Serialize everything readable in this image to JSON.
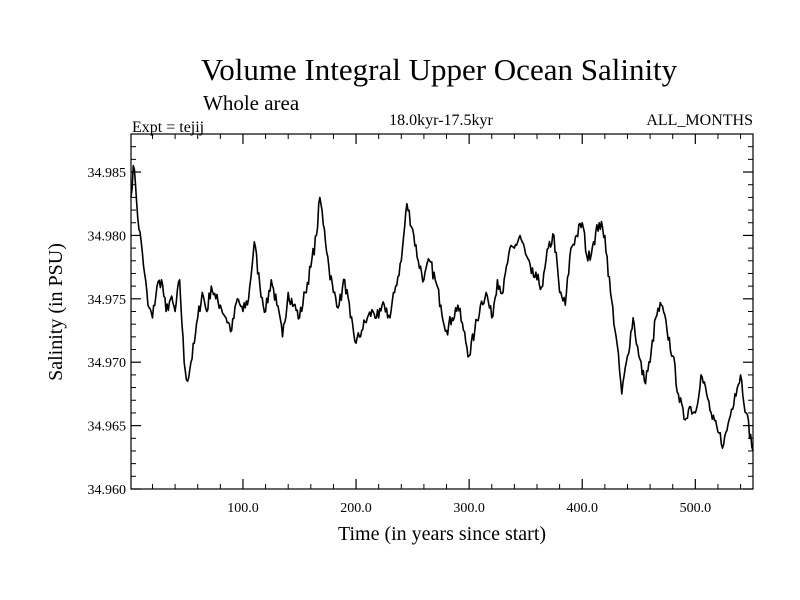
{
  "chart_data": {
    "type": "line",
    "title": "Volume Integral Upper Ocean Salinity",
    "subtitle": "Whole area",
    "experiment": "Expt = tejij",
    "period": "18.0kyr-17.5kyr",
    "months": "ALL_MONTHS",
    "xlabel": "Time (in years since start)",
    "ylabel": "Salinity (in PSU)",
    "xlim": [
      1,
      551
    ],
    "ylim": [
      34.96,
      34.988
    ],
    "xticks": [
      100,
      200,
      300,
      400,
      500
    ],
    "xtick_labels": [
      "100.0",
      "200.0",
      "300.0",
      "400.0",
      "500.0"
    ],
    "yticks": [
      34.96,
      34.965,
      34.97,
      34.975,
      34.98,
      34.985
    ],
    "ytick_labels": [
      "34.960",
      "34.965",
      "34.970",
      "34.975",
      "34.980",
      "34.985"
    ],
    "grid": false,
    "series": [
      {
        "name": "salinity",
        "x": [
          1,
          3,
          5,
          8,
          10,
          13,
          16,
          20,
          24,
          28,
          32,
          36,
          40,
          44,
          48,
          51,
          54,
          57,
          60,
          64,
          68,
          72,
          76,
          80,
          85,
          90,
          95,
          100,
          105,
          110,
          115,
          120,
          125,
          130,
          135,
          140,
          145,
          150,
          155,
          160,
          165,
          168,
          172,
          176,
          180,
          185,
          190,
          195,
          200,
          205,
          210,
          215,
          220,
          225,
          230,
          235,
          240,
          245,
          250,
          255,
          260,
          265,
          270,
          275,
          280,
          285,
          290,
          295,
          300,
          305,
          310,
          315,
          320,
          325,
          330,
          335,
          340,
          345,
          350,
          355,
          360,
          365,
          370,
          375,
          380,
          385,
          390,
          395,
          400,
          405,
          410,
          415,
          420,
          425,
          430,
          435,
          440,
          445,
          450,
          455,
          460,
          465,
          470,
          475,
          480,
          485,
          490,
          495,
          500,
          505,
          510,
          515,
          520,
          525,
          530,
          535,
          540,
          545,
          551
        ],
        "values": [
          34.983,
          34.9855,
          34.984,
          34.9805,
          34.9795,
          34.977,
          34.9745,
          34.9735,
          34.976,
          34.9765,
          34.974,
          34.975,
          34.974,
          34.9765,
          34.97,
          34.9685,
          34.97,
          34.9715,
          34.9735,
          34.9755,
          34.974,
          34.976,
          34.975,
          34.9745,
          34.9735,
          34.9725,
          34.975,
          34.974,
          34.975,
          34.9795,
          34.976,
          34.974,
          34.9765,
          34.9745,
          34.972,
          34.9755,
          34.9745,
          34.9735,
          34.9755,
          34.9775,
          34.98,
          34.983,
          34.9805,
          34.9775,
          34.9755,
          34.9745,
          34.9765,
          34.9735,
          34.9715,
          34.9725,
          34.9735,
          34.974,
          34.9735,
          34.9745,
          34.9735,
          34.976,
          34.978,
          34.9825,
          34.9805,
          34.978,
          34.9765,
          34.978,
          34.9765,
          34.9745,
          34.9725,
          34.9735,
          34.9745,
          34.9725,
          34.9705,
          34.9725,
          34.9745,
          34.9755,
          34.9735,
          34.9765,
          34.9755,
          34.9785,
          34.979,
          34.98,
          34.9785,
          34.977,
          34.9765,
          34.976,
          34.979,
          34.98,
          34.9755,
          34.9745,
          34.979,
          34.98,
          34.981,
          34.978,
          34.9795,
          34.981,
          34.98,
          34.9755,
          34.972,
          34.9675,
          34.9705,
          34.9735,
          34.9705,
          34.9685,
          34.97,
          34.9735,
          34.9745,
          34.9725,
          34.9705,
          34.9675,
          34.9655,
          34.9665,
          34.966,
          34.969,
          34.9675,
          34.9655,
          34.9645,
          34.9635,
          34.9655,
          34.9675,
          34.969,
          34.966,
          34.963
        ]
      }
    ]
  }
}
